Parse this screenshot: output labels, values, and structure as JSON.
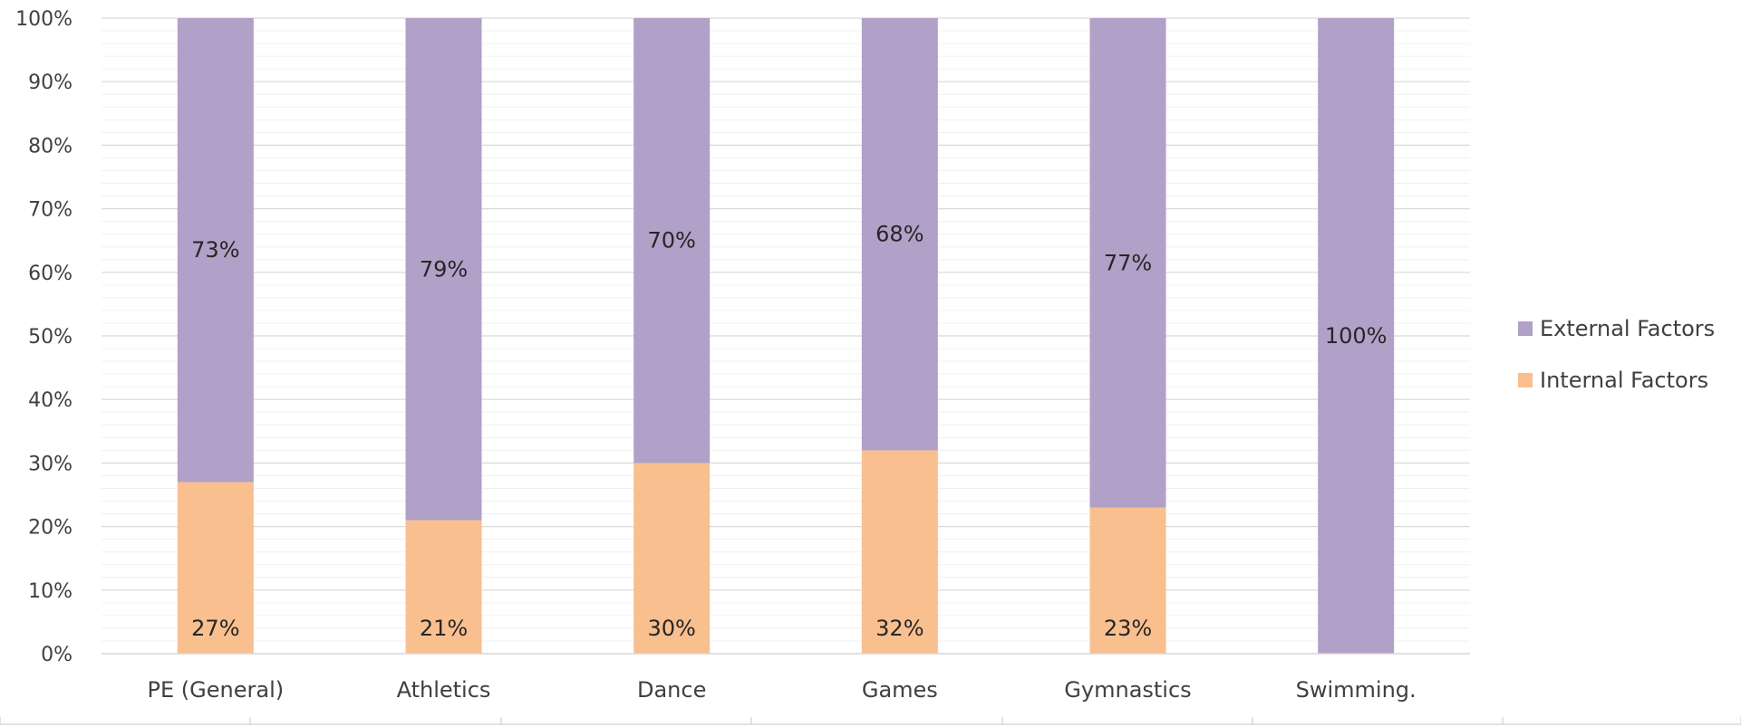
{
  "chart_data": {
    "type": "bar",
    "stacked": true,
    "percent_axis": true,
    "categories": [
      "PE (General)",
      "Athletics",
      "Dance",
      "Games",
      "Gymnastics",
      "Swimming."
    ],
    "series": [
      {
        "name": "Internal Factors",
        "values": [
          27,
          21,
          30,
          32,
          23,
          0
        ],
        "labels": [
          "27%",
          "21%",
          "30%",
          "32%",
          "23%",
          ""
        ],
        "color": "#F9BF8F"
      },
      {
        "name": "External Factors",
        "values": [
          73,
          79,
          70,
          68,
          77,
          100
        ],
        "labels": [
          "73%",
          "79%",
          "70%",
          "68%",
          "77%",
          "100%"
        ],
        "color": "#B1A0C7"
      }
    ],
    "yticks": [
      "0%",
      "10%",
      "20%",
      "30%",
      "40%",
      "50%",
      "60%",
      "70%",
      "80%",
      "90%",
      "100%"
    ],
    "ylim": [
      0,
      100
    ],
    "grid": true,
    "legend": {
      "position": "right",
      "entries": [
        "External Factors",
        "Internal Factors"
      ]
    }
  }
}
